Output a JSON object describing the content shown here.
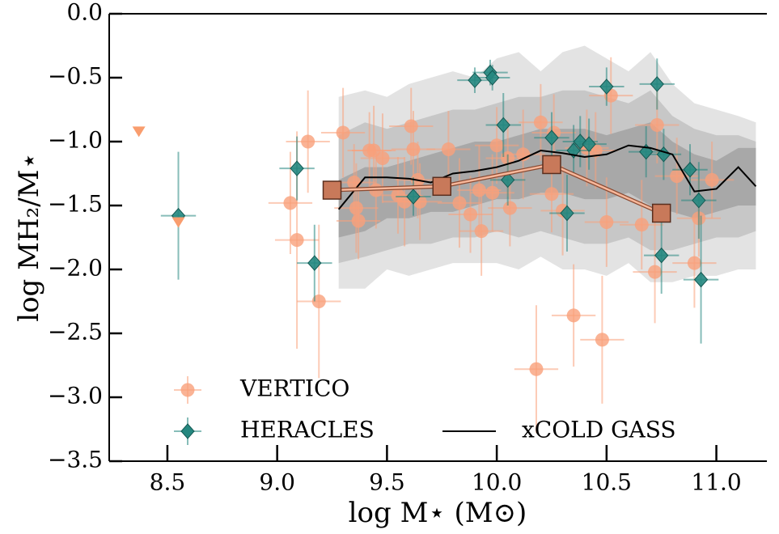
{
  "chart_data": {
    "type": "scatter",
    "xlabel": "log M⋆ (M⊙)",
    "ylabel": "log MH₂/M⋆",
    "xlim": [
      8.235,
      11.23
    ],
    "ylim": [
      -3.5,
      0
    ],
    "xticks": [
      8.5,
      {
        "value": 9,
        "label": "9.0"
      },
      9.5,
      {
        "value": 10,
        "label": "10.0"
      },
      10.5,
      {
        "value": 11,
        "label": "11.0"
      }
    ],
    "yticks": [
      {
        "value": 0,
        "label": "0.0"
      },
      {
        "value": -0.5,
        "label": "−0.5"
      },
      {
        "value": -1,
        "label": "−1.0"
      },
      {
        "value": -1.5,
        "label": "−1.5"
      },
      {
        "value": -2,
        "label": "−2.0"
      },
      {
        "value": -2.5,
        "label": "−2.5"
      },
      {
        "value": -3,
        "label": "−3.0"
      },
      {
        "value": -3.5,
        "label": "−3.5"
      }
    ],
    "legend": "lower left",
    "series": [
      {
        "name": "VERTICO",
        "marker": "circle",
        "color": "#f9a07a",
        "xerr": 0.1,
        "x": [
          9.06,
          9.09,
          9.14,
          9.19,
          9.3,
          9.35,
          9.36,
          9.37,
          9.42,
          9.44,
          9.45,
          9.48,
          9.55,
          9.58,
          9.61,
          9.62,
          9.64,
          9.65,
          9.78,
          9.83,
          9.88,
          9.92,
          9.93,
          9.98,
          10.0,
          10.05,
          10.06,
          10.12,
          10.18,
          10.2,
          10.25,
          10.26,
          10.3,
          10.35,
          10.41,
          10.45,
          10.48,
          10.5,
          10.52,
          10.66,
          10.72,
          10.73,
          10.82,
          10.9,
          10.92,
          10.98
        ],
        "values": [
          -1.48,
          -1.77,
          -1.0,
          -2.25,
          -0.93,
          -1.32,
          -1.52,
          -1.62,
          -1.07,
          -1.07,
          -1.38,
          -1.13,
          -1.42,
          -1.47,
          -0.88,
          -1.06,
          -1.3,
          -1.47,
          -1.06,
          -1.48,
          -1.57,
          -1.38,
          -1.7,
          -1.4,
          -1.03,
          -1.13,
          -1.52,
          -1.1,
          -2.78,
          -0.85,
          -1.41,
          -0.93,
          -1.54,
          -2.36,
          -1.05,
          -1.07,
          -2.55,
          -1.63,
          -0.64,
          -1.65,
          -2.02,
          -0.87,
          -1.27,
          -1.95,
          -1.6,
          -1.3
        ],
        "yerr": [
          0.4,
          0.85,
          0.4,
          0.6,
          0.35,
          0.3,
          0.35,
          0.3,
          0.3,
          0.35,
          0.3,
          0.35,
          0.3,
          0.35,
          0.3,
          0.3,
          0.3,
          0.3,
          0.3,
          0.35,
          0.3,
          0.35,
          0.35,
          0.3,
          0.3,
          0.3,
          0.3,
          0.35,
          0.5,
          0.3,
          0.3,
          0.3,
          0.35,
          0.4,
          0.3,
          0.3,
          0.5,
          0.35,
          0.3,
          0.35,
          0.4,
          0.3,
          0.3,
          0.35,
          0.3,
          0.3
        ]
      },
      {
        "name": "HERACLES",
        "marker": "diamond",
        "color": "#25877f",
        "xerr": 0.08,
        "x": [
          8.55,
          9.09,
          9.17,
          9.62,
          9.9,
          9.97,
          9.98,
          10.03,
          10.05,
          10.25,
          10.32,
          10.35,
          10.38,
          10.42,
          10.5,
          10.68,
          10.73,
          10.75,
          10.76,
          10.88,
          10.92,
          10.93
        ],
        "values": [
          -1.58,
          -1.21,
          -1.95,
          -1.43,
          -0.52,
          -0.46,
          -0.5,
          -0.87,
          -1.3,
          -0.97,
          -1.56,
          -1.07,
          -1.0,
          -1.02,
          -0.57,
          -1.08,
          -0.55,
          -1.89,
          -1.1,
          -1.22,
          -1.46,
          -2.08
        ],
        "yerr": [
          0.5,
          0.25,
          0.3,
          0.15,
          0.1,
          0.1,
          0.1,
          0.25,
          0.2,
          0.2,
          0.3,
          0.2,
          0.2,
          0.2,
          0.15,
          0.2,
          0.2,
          0.3,
          0.2,
          0.2,
          0.3,
          0.5
        ]
      },
      {
        "name": "xCOLD GASS",
        "marker": "line",
        "color": "#000000",
        "x": [
          9.28,
          9.4,
          9.5,
          9.6,
          9.7,
          9.8,
          9.9,
          10.0,
          10.1,
          10.2,
          10.3,
          10.4,
          10.5,
          10.6,
          10.7,
          10.8,
          10.9,
          11.0,
          11.1,
          11.18
        ],
        "values": [
          -1.53,
          -1.28,
          -1.28,
          -1.29,
          -1.32,
          -1.25,
          -1.23,
          -1.2,
          -1.15,
          -1.07,
          -1.09,
          -1.12,
          -1.1,
          -1.03,
          -1.05,
          -1.1,
          -1.39,
          -1.37,
          -1.2,
          -1.35
        ],
        "bands": [
          {
            "color": "#d9d9d9",
            "upper": [
              -0.65,
              -0.6,
              -0.65,
              -0.55,
              -0.5,
              -0.45,
              -0.5,
              -0.35,
              -0.3,
              -0.45,
              -0.3,
              -0.25,
              -0.35,
              -0.45,
              -0.3,
              -0.55,
              -0.7,
              -0.75,
              -0.8,
              -0.85
            ],
            "lower": [
              -2.15,
              -2.15,
              -2.0,
              -2.05,
              -2.0,
              -1.95,
              -1.95,
              -1.95,
              -2.0,
              -1.9,
              -2.0,
              -2.0,
              -2.05,
              -1.95,
              -2.1,
              -2.1,
              -2.05,
              -2.05,
              -2.0,
              -2.0
            ]
          },
          {
            "color": "#bdbdbd",
            "upper": [
              -0.95,
              -0.85,
              -0.9,
              -0.85,
              -0.8,
              -0.75,
              -0.75,
              -0.7,
              -0.65,
              -0.65,
              -0.6,
              -0.6,
              -0.65,
              -0.7,
              -0.6,
              -0.8,
              -0.9,
              -0.95,
              -0.95,
              -1.0
            ],
            "lower": [
              -1.95,
              -1.9,
              -1.85,
              -1.8,
              -1.8,
              -1.75,
              -1.75,
              -1.7,
              -1.75,
              -1.7,
              -1.75,
              -1.8,
              -1.8,
              -1.75,
              -1.85,
              -1.85,
              -1.8,
              -1.75,
              -1.75,
              -1.7
            ]
          },
          {
            "color": "#9e9e9e",
            "upper": [
              -1.3,
              -1.2,
              -1.2,
              -1.15,
              -1.1,
              -1.05,
              -1.0,
              -1.0,
              -0.95,
              -0.9,
              -0.9,
              -0.9,
              -0.95,
              -0.9,
              -0.85,
              -1.0,
              -1.1,
              -1.15,
              -1.05,
              -1.05
            ],
            "lower": [
              -1.75,
              -1.7,
              -1.6,
              -1.6,
              -1.55,
              -1.55,
              -1.5,
              -1.45,
              -1.45,
              -1.4,
              -1.4,
              -1.45,
              -1.45,
              -1.4,
              -1.5,
              -1.55,
              -1.6,
              -1.55,
              -1.5,
              -1.5
            ]
          }
        ]
      }
    ],
    "medians": {
      "color": "#c8795a",
      "x": [
        9.25,
        9.75,
        10.25,
        10.75
      ],
      "values": [
        -1.38,
        -1.35,
        -1.18,
        -1.56
      ]
    },
    "upper_limits": {
      "color": "#f99d6e",
      "x": [
        8.37,
        8.55
      ],
      "values": [
        -0.92,
        -1.63
      ]
    }
  }
}
